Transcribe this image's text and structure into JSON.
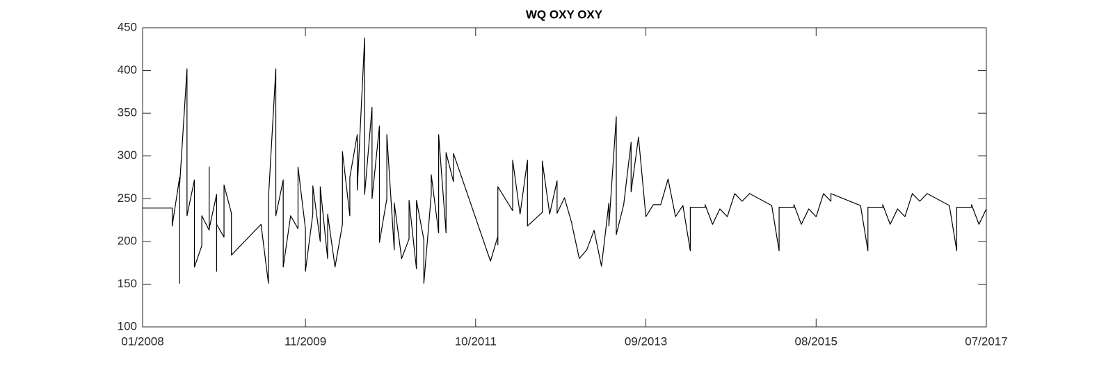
{
  "chart_data": {
    "type": "line",
    "title": "WQ OXY OXY",
    "x": [
      "2008-01",
      "2008-05",
      "2008-05",
      "2008-06",
      "2008-06",
      "2008-06",
      "2008-07",
      "2008-07",
      "2008-08",
      "2008-08",
      "2008-09",
      "2008-09",
      "2008-10",
      "2008-10",
      "2008-10",
      "2008-11",
      "2008-11",
      "2008-11",
      "2008-12",
      "2008-12",
      "2009-01",
      "2009-01",
      "2009-05",
      "2009-06",
      "2009-06",
      "2009-07",
      "2009-07",
      "2009-08",
      "2009-08",
      "2009-09",
      "2009-10",
      "2009-10",
      "2009-11",
      "2009-11",
      "2009-12",
      "2009-12",
      "2010-01",
      "2010-01",
      "2010-02",
      "2010-02",
      "2010-03",
      "2010-04",
      "2010-04",
      "2010-05",
      "2010-05",
      "2010-06",
      "2010-06",
      "2010-07",
      "2010-07",
      "2010-08",
      "2010-08",
      "2010-09",
      "2010-09",
      "2010-09",
      "2010-10",
      "2010-10",
      "2010-11",
      "2010-11",
      "2010-12",
      "2011-01",
      "2011-01",
      "2011-02",
      "2011-02",
      "2011-03",
      "2011-03",
      "2011-04",
      "2011-04",
      "2011-05",
      "2011-05",
      "2011-06",
      "2011-06",
      "2011-07",
      "2011-07",
      "2011-12",
      "2012-01",
      "2012-01",
      "2012-01",
      "2012-02",
      "2012-03",
      "2012-03",
      "2012-04",
      "2012-05",
      "2012-05",
      "2012-07",
      "2012-07",
      "2012-08",
      "2012-09",
      "2012-09",
      "2012-10",
      "2012-11",
      "2012-11",
      "2012-12",
      "2013-01",
      "2013-02",
      "2013-03",
      "2013-04",
      "2013-04",
      "2013-05",
      "2013-05",
      "2013-06",
      "2013-07",
      "2013-07",
      "2013-08",
      "2013-09",
      "2013-10",
      "2013-11",
      "2013-12",
      "2014-01",
      "2014-02",
      "2014-03",
      "2014-03",
      "2014-05",
      "2014-05",
      "2014-06",
      "2014-07",
      "2014-08",
      "2014-09",
      "2014-10",
      "2014-11",
      "2015-02",
      "2015-03",
      "2015-03",
      "2015-05",
      "2015-05",
      "2015-06",
      "2015-07",
      "2015-08",
      "2015-09",
      "2015-10",
      "2015-10",
      "2016-02",
      "2016-03",
      "2016-03",
      "2016-05",
      "2016-05",
      "2016-06",
      "2016-07",
      "2016-08",
      "2016-09",
      "2016-10",
      "2016-11",
      "2017-02",
      "2017-03",
      "2017-03",
      "2017-05",
      "2017-05",
      "2017-06",
      "2017-07"
    ],
    "values": [
      239,
      239,
      218,
      275,
      151,
      265,
      402,
      230,
      272,
      170,
      195,
      230,
      213,
      287,
      215,
      255,
      165,
      220,
      205,
      266,
      233,
      184,
      220,
      151,
      250,
      402,
      230,
      272,
      170,
      230,
      215,
      287,
      215,
      165,
      232,
      265,
      200,
      264,
      180,
      232,
      170,
      220,
      305,
      230,
      275,
      325,
      260,
      438,
      255,
      357,
      250,
      335,
      267,
      199,
      250,
      325,
      190,
      245,
      180,
      203,
      248,
      168,
      248,
      202,
      151,
      255,
      278,
      210,
      325,
      210,
      304,
      270,
      303,
      177,
      206,
      196,
      264,
      250,
      236,
      295,
      232,
      295,
      218,
      234,
      294,
      232,
      271,
      233,
      251,
      221,
      220,
      180,
      190,
      213,
      171,
      245,
      218,
      346,
      208,
      243,
      316,
      258,
      322,
      229,
      243,
      243,
      273,
      229,
      242,
      189,
      240,
      240,
      243,
      220,
      238,
      229,
      256,
      247,
      256,
      242,
      189,
      240,
      240,
      243,
      220,
      238,
      229,
      256,
      247,
      256,
      242,
      189,
      240,
      240,
      243,
      220,
      238,
      229,
      256,
      247,
      256,
      242,
      189,
      240,
      240,
      243,
      220,
      238
    ],
    "color": "#000000",
    "xlim": [
      "2008-01",
      "2017-07"
    ],
    "xticks": [
      {
        "value": "2008-01",
        "label": "01/2008"
      },
      {
        "value": "2009-11",
        "label": "11/2009"
      },
      {
        "value": "2011-10",
        "label": "10/2011"
      },
      {
        "value": "2013-09",
        "label": "09/2013"
      },
      {
        "value": "2015-08",
        "label": "08/2015"
      },
      {
        "value": "2017-07",
        "label": "07/2017"
      }
    ],
    "ylim": [
      100,
      450
    ],
    "yticks": [
      100,
      150,
      200,
      250,
      300,
      350,
      400,
      450
    ],
    "grid": false
  }
}
